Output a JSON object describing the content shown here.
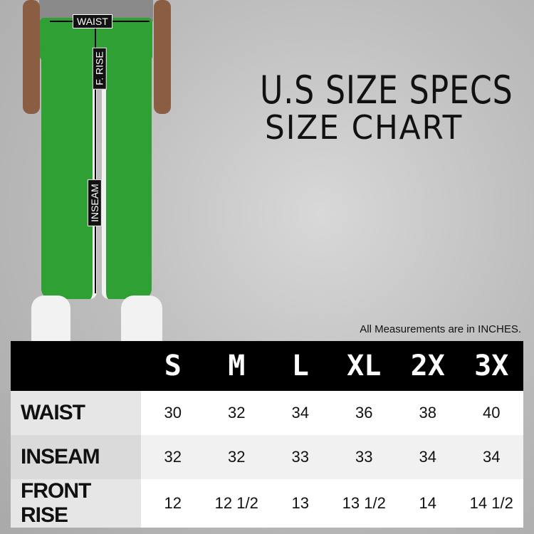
{
  "title": "U.S SIZE SPECS",
  "subtitle": "SIZE CHART",
  "note": "All Measurements are in INCHES.",
  "product_color": "#2fa033",
  "diagram_labels": {
    "waist": "WAIST",
    "front_rise": "F. RISE",
    "inseam": "INSEAM"
  },
  "table": {
    "sizes": [
      "S",
      "M",
      "L",
      "XL",
      "2X",
      "3X"
    ],
    "rows": [
      {
        "label": "WAIST",
        "values": [
          "30",
          "32",
          "34",
          "36",
          "38",
          "40"
        ]
      },
      {
        "label": "INSEAM",
        "values": [
          "32",
          "32",
          "33",
          "33",
          "34",
          "34"
        ]
      },
      {
        "label": "FRONT RISE",
        "values": [
          "12",
          "12 1/2",
          "13",
          "13 1/2",
          "14",
          "14 1/2"
        ]
      }
    ]
  }
}
